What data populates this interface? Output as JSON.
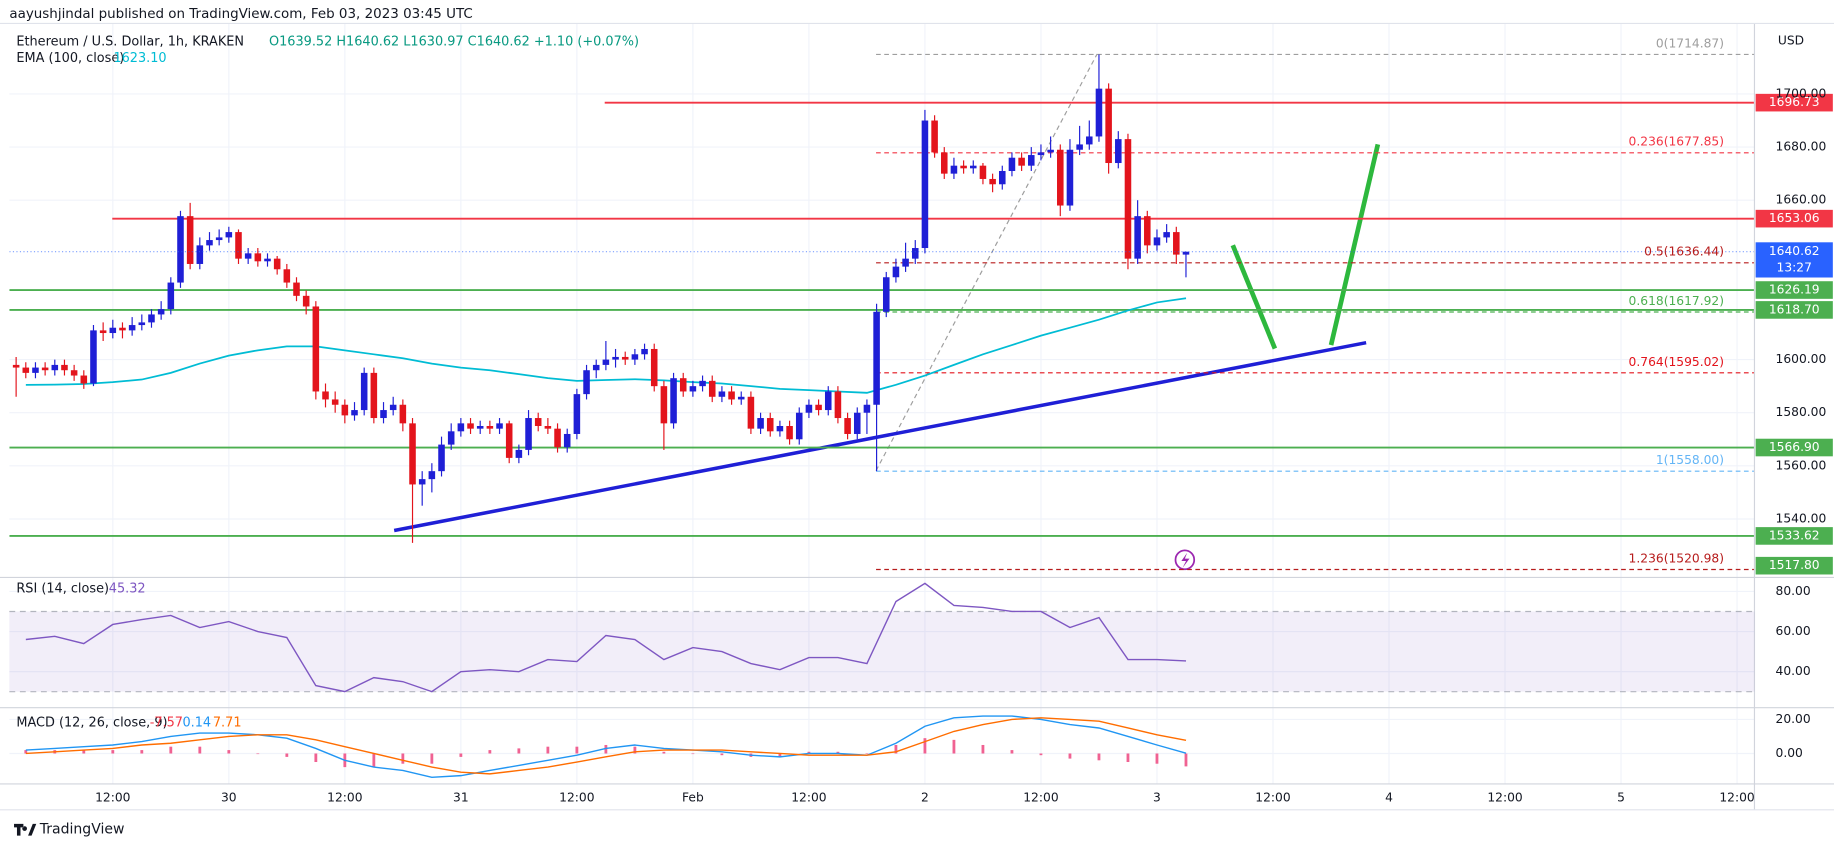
{
  "chart_data": {
    "type": "candlestick",
    "published": "aayushjindal published on TradingView.com, Feb 03, 2023 03:45 UTC",
    "title": "Ethereum / U.S. Dollar, 1h, KRAKEN",
    "ohlc_text": "O1639.52 H1640.62 L1630.97 C1640.62 +1.10 (+0.07%)",
    "currency": "USD",
    "up_color": "#1f1fd6",
    "down_color": "#e3141c",
    "grid": true,
    "xlim": [
      1.3,
      181.8
    ],
    "xticks": [
      {
        "value": 12,
        "label": "12:00"
      },
      {
        "value": 24,
        "label": "30"
      },
      {
        "value": 36,
        "label": "12:00"
      },
      {
        "value": 48,
        "label": "31"
      },
      {
        "value": 60,
        "label": "12:00"
      },
      {
        "value": 72,
        "label": "Feb"
      },
      {
        "value": 84,
        "label": "12:00"
      },
      {
        "value": 96,
        "label": "2"
      },
      {
        "value": 108,
        "label": "12:00"
      },
      {
        "value": 120,
        "label": "3"
      },
      {
        "value": 132,
        "label": "12:00"
      },
      {
        "value": 144,
        "label": "4"
      },
      {
        "value": 156,
        "label": "12:00"
      },
      {
        "value": 168,
        "label": "5"
      },
      {
        "value": 180,
        "label": "12:00"
      }
    ],
    "ylim": [
      1518,
      1723
    ],
    "yticks": [
      {
        "value": 1540,
        "label": "1540.00"
      },
      {
        "value": 1560,
        "label": "1560.00"
      },
      {
        "value": 1580,
        "label": "1580.00"
      },
      {
        "value": 1600,
        "label": "1600.00"
      },
      {
        "value": 1660,
        "label": "1660.00"
      },
      {
        "value": 1680,
        "label": "1680.00"
      },
      {
        "value": 1700,
        "label": "1700.00"
      }
    ],
    "x": [
      2,
      3,
      4,
      5,
      6,
      7,
      8,
      9,
      10,
      11,
      12,
      13,
      14,
      15,
      16,
      17,
      18,
      19,
      20,
      21,
      22,
      23,
      24,
      25,
      26,
      27,
      28,
      29,
      30,
      31,
      32,
      33,
      34,
      35,
      36,
      37,
      38,
      39,
      40,
      41,
      42,
      43,
      44,
      45,
      46,
      47,
      48,
      49,
      50,
      51,
      52,
      53,
      54,
      55,
      56,
      57,
      58,
      59,
      60,
      61,
      62,
      63,
      64,
      65,
      66,
      67,
      68,
      69,
      70,
      71,
      72,
      73,
      74,
      75,
      76,
      77,
      78,
      79,
      80,
      81,
      82,
      83,
      84,
      85,
      86,
      87,
      88,
      89,
      90,
      91,
      92,
      93,
      94,
      95,
      96,
      97,
      98,
      99,
      100,
      101,
      102,
      103,
      104,
      105,
      106,
      107,
      108,
      109,
      110,
      111,
      112,
      113,
      114,
      115,
      116,
      117,
      118,
      119,
      120,
      121,
      122,
      123
    ],
    "ohlc": [
      [
        1598,
        1601,
        1586,
        1597
      ],
      [
        1597,
        1599,
        1593,
        1595
      ],
      [
        1595,
        1599,
        1593,
        1597
      ],
      [
        1597,
        1599,
        1594,
        1596
      ],
      [
        1596,
        1600,
        1594,
        1598
      ],
      [
        1598,
        1600,
        1594,
        1596
      ],
      [
        1596,
        1598,
        1592,
        1594
      ],
      [
        1594,
        1596,
        1589,
        1591
      ],
      [
        1591,
        1613,
        1590,
        1611
      ],
      [
        1611,
        1614,
        1607,
        1610
      ],
      [
        1610,
        1615,
        1608,
        1612
      ],
      [
        1612,
        1614,
        1608,
        1611
      ],
      [
        1611,
        1616,
        1609,
        1613
      ],
      [
        1613,
        1617,
        1611,
        1614
      ],
      [
        1614,
        1619,
        1612,
        1617
      ],
      [
        1617,
        1622,
        1615,
        1619
      ],
      [
        1619,
        1631,
        1617,
        1629
      ],
      [
        1629,
        1656,
        1627,
        1654
      ],
      [
        1654,
        1659,
        1634,
        1636
      ],
      [
        1636,
        1646,
        1634,
        1643
      ],
      [
        1643,
        1648,
        1641,
        1645
      ],
      [
        1645,
        1649,
        1643,
        1646
      ],
      [
        1646,
        1650,
        1644,
        1648
      ],
      [
        1648,
        1649,
        1636,
        1638
      ],
      [
        1638,
        1642,
        1636,
        1640
      ],
      [
        1640,
        1642,
        1635,
        1637
      ],
      [
        1637,
        1640,
        1635,
        1638
      ],
      [
        1638,
        1639,
        1632,
        1634
      ],
      [
        1634,
        1636,
        1627,
        1629
      ],
      [
        1629,
        1631,
        1622,
        1624
      ],
      [
        1624,
        1626,
        1617,
        1620
      ],
      [
        1620,
        1622,
        1585,
        1588
      ],
      [
        1588,
        1591,
        1582,
        1585
      ],
      [
        1585,
        1588,
        1580,
        1583
      ],
      [
        1583,
        1585,
        1576,
        1579
      ],
      [
        1579,
        1584,
        1577,
        1581
      ],
      [
        1581,
        1597,
        1579,
        1595
      ],
      [
        1595,
        1597,
        1576,
        1578
      ],
      [
        1578,
        1584,
        1576,
        1581
      ],
      [
        1581,
        1586,
        1579,
        1583
      ],
      [
        1583,
        1585,
        1573,
        1576
      ],
      [
        1576,
        1578,
        1531,
        1553
      ],
      [
        1553,
        1558,
        1545,
        1555
      ],
      [
        1555,
        1561,
        1550,
        1558
      ],
      [
        1558,
        1571,
        1556,
        1568
      ],
      [
        1568,
        1576,
        1566,
        1573
      ],
      [
        1573,
        1578,
        1571,
        1576
      ],
      [
        1576,
        1578,
        1572,
        1574
      ],
      [
        1574,
        1577,
        1572,
        1575
      ],
      [
        1575,
        1577,
        1572,
        1574
      ],
      [
        1574,
        1578,
        1572,
        1576
      ],
      [
        1576,
        1577,
        1561,
        1563
      ],
      [
        1563,
        1568,
        1561,
        1566
      ],
      [
        1566,
        1581,
        1564,
        1578
      ],
      [
        1578,
        1580,
        1573,
        1575
      ],
      [
        1575,
        1578,
        1572,
        1574
      ],
      [
        1574,
        1576,
        1565,
        1567
      ],
      [
        1567,
        1574,
        1565,
        1572
      ],
      [
        1572,
        1589,
        1570,
        1587
      ],
      [
        1587,
        1598,
        1585,
        1596
      ],
      [
        1596,
        1600,
        1593,
        1598
      ],
      [
        1598,
        1607,
        1596,
        1600
      ],
      [
        1600,
        1604,
        1597,
        1601
      ],
      [
        1601,
        1603,
        1598,
        1600
      ],
      [
        1600,
        1604,
        1598,
        1602
      ],
      [
        1602,
        1606,
        1600,
        1604
      ],
      [
        1604,
        1606,
        1588,
        1590
      ],
      [
        1590,
        1592,
        1566,
        1576
      ],
      [
        1576,
        1595,
        1574,
        1593
      ],
      [
        1593,
        1595,
        1586,
        1588
      ],
      [
        1588,
        1592,
        1586,
        1590
      ],
      [
        1590,
        1594,
        1588,
        1592
      ],
      [
        1592,
        1594,
        1584,
        1586
      ],
      [
        1586,
        1590,
        1584,
        1588
      ],
      [
        1588,
        1590,
        1583,
        1585
      ],
      [
        1585,
        1588,
        1583,
        1586
      ],
      [
        1586,
        1588,
        1572,
        1574
      ],
      [
        1574,
        1580,
        1572,
        1578
      ],
      [
        1578,
        1580,
        1571,
        1573
      ],
      [
        1573,
        1577,
        1571,
        1575
      ],
      [
        1575,
        1577,
        1568,
        1570
      ],
      [
        1570,
        1582,
        1568,
        1580
      ],
      [
        1580,
        1585,
        1578,
        1583
      ],
      [
        1583,
        1585,
        1579,
        1581
      ],
      [
        1581,
        1590,
        1579,
        1588
      ],
      [
        1588,
        1590,
        1576,
        1578
      ],
      [
        1578,
        1580,
        1570,
        1572
      ],
      [
        1572,
        1582,
        1570,
        1580
      ],
      [
        1580,
        1585,
        1572,
        1583
      ],
      [
        1583,
        1621,
        1558,
        1618
      ],
      [
        1618,
        1633,
        1616,
        1631
      ],
      [
        1631,
        1638,
        1629,
        1635
      ],
      [
        1635,
        1644,
        1633,
        1638
      ],
      [
        1638,
        1645,
        1636,
        1642
      ],
      [
        1642,
        1694,
        1640,
        1690
      ],
      [
        1690,
        1692,
        1676,
        1678
      ],
      [
        1678,
        1680,
        1668,
        1670
      ],
      [
        1670,
        1676,
        1668,
        1673
      ],
      [
        1673,
        1675,
        1670,
        1672
      ],
      [
        1672,
        1675,
        1670,
        1673
      ],
      [
        1673,
        1674,
        1666,
        1668
      ],
      [
        1668,
        1670,
        1663,
        1666
      ],
      [
        1666,
        1673,
        1664,
        1671
      ],
      [
        1671,
        1678,
        1669,
        1676
      ],
      [
        1676,
        1678,
        1671,
        1673
      ],
      [
        1673,
        1680,
        1671,
        1677
      ],
      [
        1677,
        1681,
        1675,
        1678
      ],
      [
        1678,
        1684,
        1676,
        1679
      ],
      [
        1679,
        1681,
        1654,
        1658
      ],
      [
        1658,
        1683,
        1656,
        1679
      ],
      [
        1679,
        1688,
        1677,
        1681
      ],
      [
        1681,
        1690,
        1679,
        1684
      ],
      [
        1684,
        1714.87,
        1682,
        1702
      ],
      [
        1702,
        1704,
        1670,
        1674
      ],
      [
        1674,
        1686,
        1672,
        1683
      ],
      [
        1683,
        1685,
        1634,
        1638
      ],
      [
        1638,
        1660,
        1636,
        1654
      ],
      [
        1654,
        1656,
        1640,
        1643
      ],
      [
        1643,
        1649,
        1641,
        1646
      ],
      [
        1646,
        1651,
        1644,
        1648
      ],
      [
        1648,
        1650,
        1636,
        1639.52
      ],
      [
        1639.52,
        1640.62,
        1630.97,
        1640.62
      ]
    ],
    "last_price_label": "1640.62",
    "countdown": "13:27",
    "last_price_color": "#2962ff",
    "levels": [
      {
        "price": 1696.73,
        "label": "1696.73",
        "color": "#f23645"
      },
      {
        "price": 1653.06,
        "label": "1653.06",
        "color": "#f23645"
      },
      {
        "price": 1626.19,
        "label": "1626.19",
        "color": "#4caf50"
      },
      {
        "price": 1618.7,
        "label": "1618.70",
        "color": "#4caf50"
      },
      {
        "price": 1566.9,
        "label": "1566.90",
        "color": "#4caf50"
      },
      {
        "price": 1533.62,
        "label": "1533.62",
        "color": "#4caf50"
      },
      {
        "price": 1517.8,
        "label": "1517.80",
        "color": "#4caf50"
      }
    ],
    "fib": [
      {
        "price": 1714.87,
        "label": "0(1714.87)",
        "color": "#9e9e9e"
      },
      {
        "price": 1677.85,
        "label": "0.236(1677.85)",
        "color": "#f23645"
      },
      {
        "price": 1636.44,
        "label": "0.5(1636.44)",
        "color": "#b71c1c"
      },
      {
        "price": 1617.92,
        "label": "0.618(1617.92)",
        "color": "#4caf50"
      },
      {
        "price": 1595.02,
        "label": "0.764(1595.02)",
        "color": "#e3141c"
      },
      {
        "price": 1558.0,
        "label": "1(1558.00)",
        "color": "#64b5f6"
      },
      {
        "price": 1520.98,
        "label": "1.236(1520.98)",
        "color": "#b71c1c"
      }
    ],
    "indicator_x": [
      3,
      6,
      9,
      12,
      15,
      18,
      21,
      24,
      27,
      30,
      33,
      36,
      39,
      42,
      45,
      48,
      51,
      54,
      57,
      60,
      63,
      66,
      69,
      72,
      75,
      78,
      81,
      84,
      87,
      90,
      93,
      96,
      99,
      102,
      105,
      108,
      111,
      114,
      117,
      120,
      123
    ],
    "ema": {
      "label": "EMA (100, close)",
      "value_label": "1623.10",
      "color": "#00bcd4",
      "values": [
        1590.5,
        1590.6,
        1590.8,
        1591.5,
        1592.5,
        1595,
        1598.5,
        1601.5,
        1603.5,
        1605,
        1605,
        1603.5,
        1602,
        1600.5,
        1598.5,
        1597,
        1596,
        1594.5,
        1593,
        1592,
        1592.3,
        1592.6,
        1592.2,
        1591.5,
        1591,
        1590,
        1589,
        1588.5,
        1588,
        1587.5,
        1590.5,
        1594,
        1598,
        1602,
        1605.5,
        1609,
        1612,
        1615,
        1618.5,
        1621.5,
        1623.1
      ]
    },
    "rsi": {
      "label": "RSI (14, close)",
      "value_label": "45.32",
      "color": "#7e57c2",
      "ylim": [
        22,
        87
      ],
      "yticks": [
        {
          "value": 40,
          "label": "40.00"
        },
        {
          "value": 60,
          "label": "60.00"
        },
        {
          "value": 80,
          "label": "80.00"
        }
      ],
      "bands": [
        30,
        70
      ],
      "values": [
        56,
        57.6,
        54,
        63.5,
        66,
        68,
        62,
        65,
        60,
        57,
        33,
        30,
        37,
        35,
        30,
        40,
        41,
        40,
        46,
        45,
        58,
        56,
        46,
        52,
        50,
        44,
        41,
        47,
        47,
        44,
        75,
        84,
        73,
        72,
        70,
        70,
        62,
        67,
        46,
        46,
        45.32
      ]
    },
    "macd": {
      "label": "MACD (12, 26, close, 9)",
      "hist_label": "-7.57",
      "macd_label": "0.14",
      "signal_label": "7.71",
      "macd_color": "#2196f3",
      "signal_color": "#ff6d00",
      "hist_color": "#f06292",
      "ylim": [
        -17.9,
        26.9
      ],
      "yticks": [
        {
          "value": 0,
          "label": "0.00"
        },
        {
          "value": 20,
          "label": "20.00"
        }
      ],
      "macd": [
        2,
        3,
        4,
        5,
        7,
        10,
        12,
        12,
        11,
        9,
        3,
        -4,
        -8,
        -10,
        -14,
        -13,
        -10,
        -7,
        -4,
        -1,
        3,
        5,
        3,
        2,
        1,
        -1,
        -2,
        0,
        0,
        -1,
        6,
        16,
        21,
        22,
        22,
        20,
        17,
        15,
        10,
        5,
        0.14
      ],
      "signal": [
        0,
        1,
        2,
        3,
        5,
        6,
        8,
        10,
        11,
        11,
        8,
        4,
        0,
        -4,
        -8,
        -11,
        -12,
        -10,
        -8,
        -5,
        -2,
        1,
        2,
        2,
        2,
        1,
        0,
        -1,
        -1,
        -1,
        1,
        7,
        13,
        17,
        20,
        21,
        20,
        19,
        15,
        11,
        7.71
      ],
      "hist": [
        2,
        2,
        2,
        2,
        2,
        4,
        4,
        2,
        0,
        -2,
        -5,
        -8,
        -8,
        -6,
        -6,
        -2,
        2,
        3,
        4,
        4,
        5,
        4,
        1,
        0,
        -1,
        -2,
        -2,
        1,
        1,
        0,
        5,
        9,
        8,
        5,
        2,
        -1,
        -3,
        -4,
        -5,
        -6,
        -7.57
      ]
    },
    "brand": "TradingView"
  }
}
